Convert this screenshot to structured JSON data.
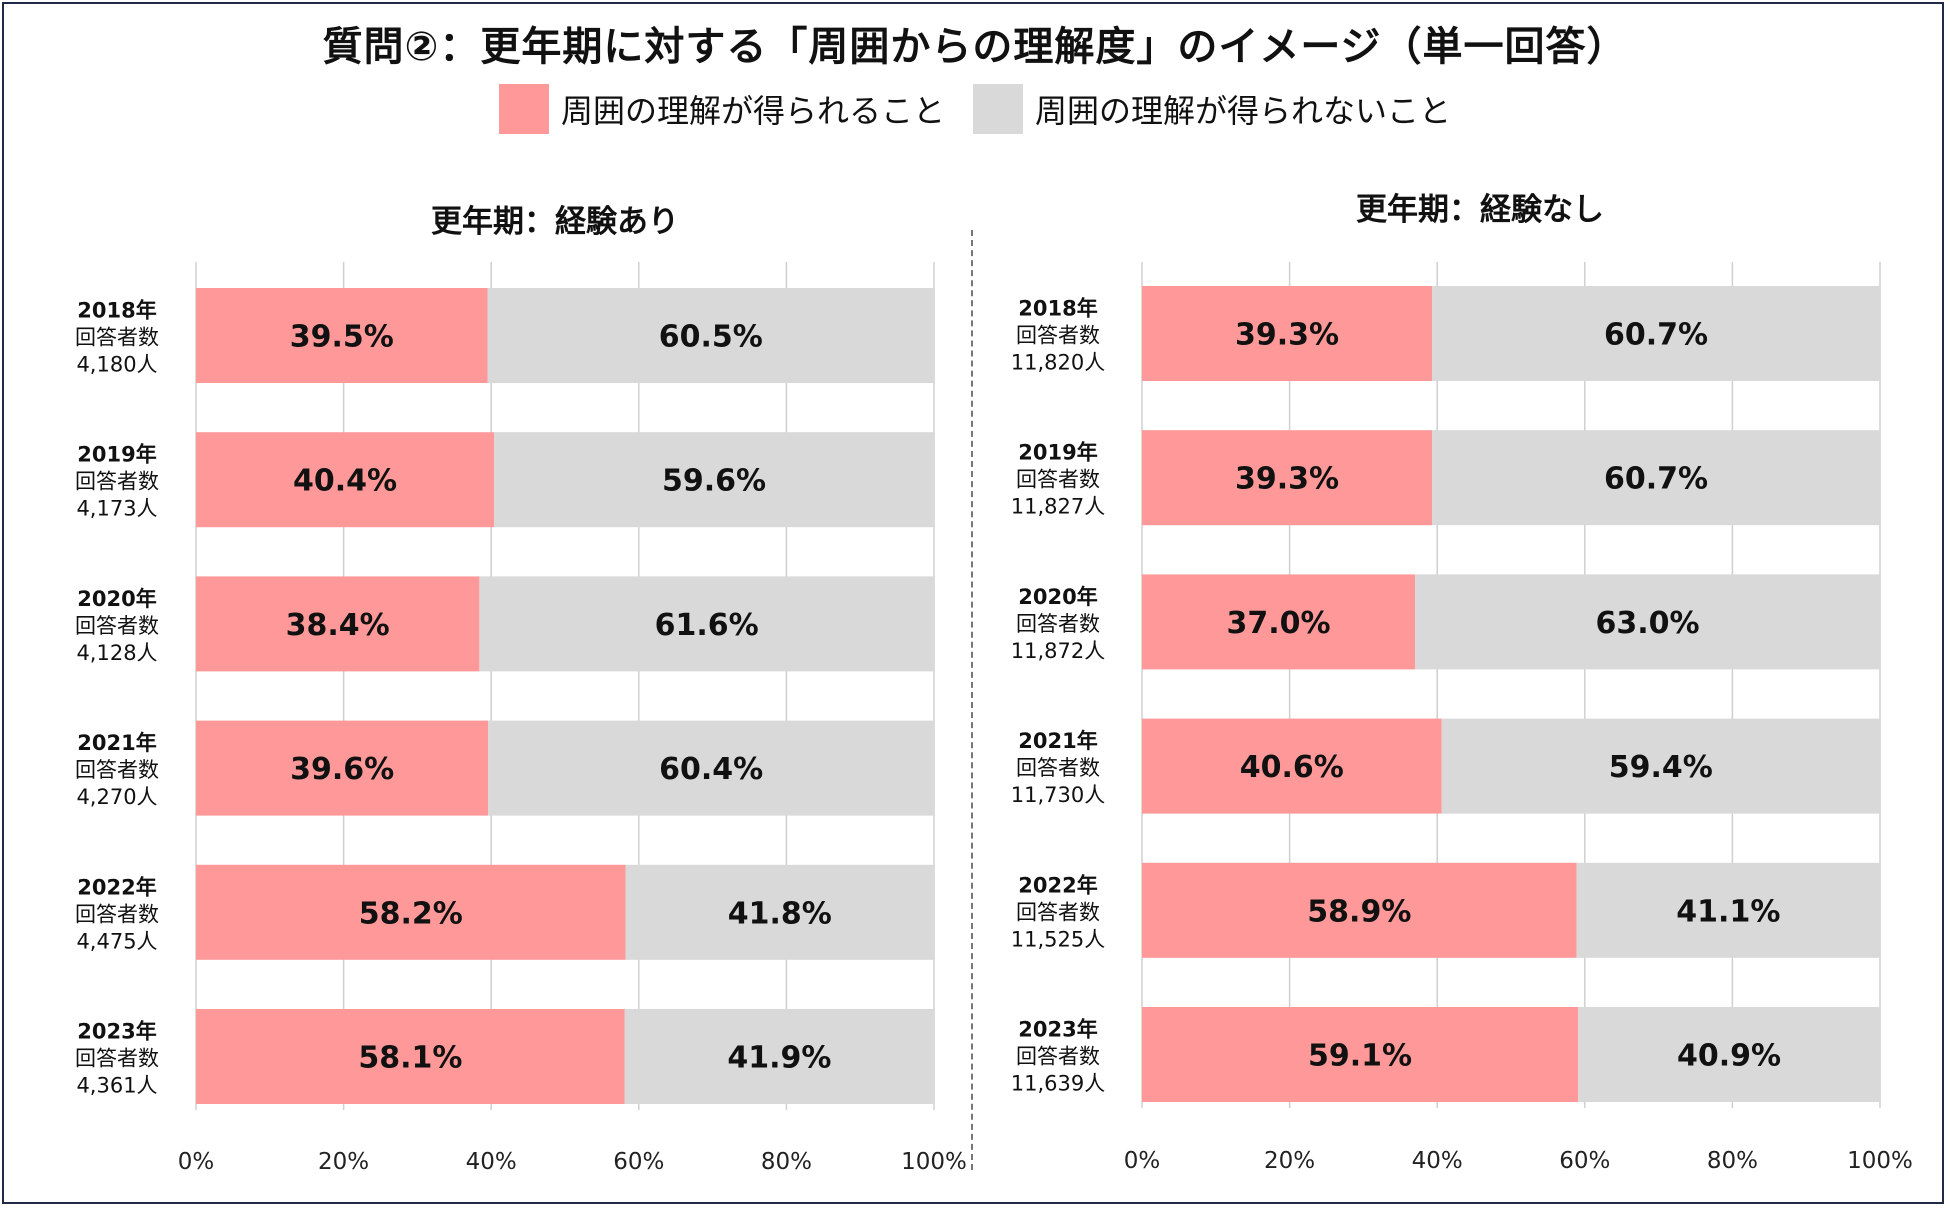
{
  "title": "質問②：更年期に対する「周囲からの理解度」のイメージ（単一回答）",
  "legend": [
    {
      "label": "周囲の理解が得られること",
      "color": "#ff9999"
    },
    {
      "label": "周囲の理解が得られないこと",
      "color": "#d9d9d9"
    }
  ],
  "row_label_prefix": "回答者数",
  "chart_data": [
    {
      "type": "bar",
      "orientation": "horizontal",
      "stacked": true,
      "title": "更年期：経験あり",
      "categories": [
        "2018年",
        "2019年",
        "2020年",
        "2021年",
        "2022年",
        "2023年"
      ],
      "respondents": [
        "4,180人",
        "4,173人",
        "4,128人",
        "4,270人",
        "4,475人",
        "4,361人"
      ],
      "series": [
        {
          "name": "周囲の理解が得られること",
          "values": [
            39.5,
            40.4,
            38.4,
            39.6,
            58.2,
            58.1
          ]
        },
        {
          "name": "周囲の理解が得られないこと",
          "values": [
            60.5,
            59.6,
            61.6,
            60.4,
            41.8,
            41.9
          ]
        }
      ],
      "xlim": [
        0,
        100
      ],
      "xticks": [
        "0%",
        "20%",
        "40%",
        "60%",
        "80%",
        "100%"
      ],
      "grid": true
    },
    {
      "type": "bar",
      "orientation": "horizontal",
      "stacked": true,
      "title": "更年期：経験なし",
      "categories": [
        "2018年",
        "2019年",
        "2020年",
        "2021年",
        "2022年",
        "2023年"
      ],
      "respondents": [
        "11,820人",
        "11,827人",
        "11,872人",
        "11,730人",
        "11,525人",
        "11,639人"
      ],
      "series": [
        {
          "name": "周囲の理解が得られること",
          "values": [
            39.3,
            39.3,
            37.0,
            40.6,
            58.9,
            59.1
          ]
        },
        {
          "name": "周囲の理解が得られないこと",
          "values": [
            60.7,
            60.7,
            63.0,
            59.4,
            41.1,
            40.9
          ]
        }
      ],
      "xlim": [
        0,
        100
      ],
      "xticks": [
        "0%",
        "20%",
        "40%",
        "60%",
        "80%",
        "100%"
      ],
      "grid": true
    }
  ]
}
